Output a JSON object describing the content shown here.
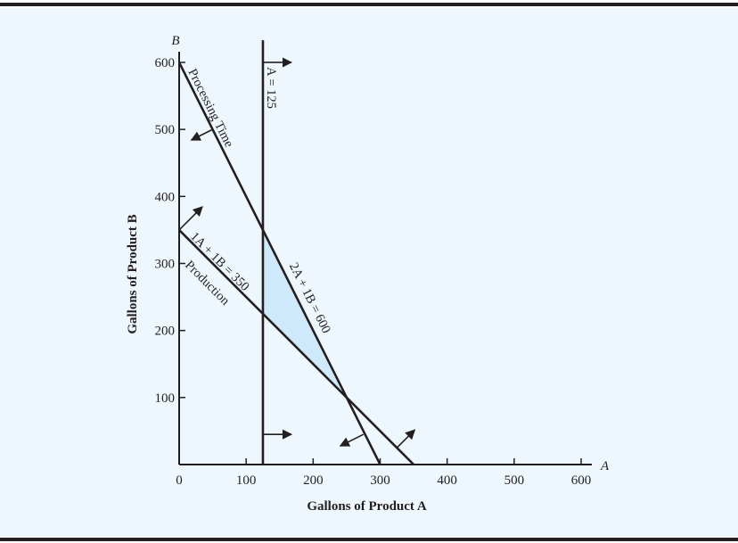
{
  "chart_data": {
    "type": "line",
    "xlabel": "Gallons of Product A",
    "ylabel": "Gallons of Product B",
    "x_axis_var": "A",
    "y_axis_var": "B",
    "xlim": [
      0,
      600
    ],
    "ylim": [
      0,
      600
    ],
    "xticks": [
      0,
      100,
      200,
      300,
      400,
      500,
      600
    ],
    "yticks": [
      100,
      200,
      300,
      400,
      500,
      600
    ],
    "grid": false,
    "colors": {
      "feasible_region": "#cde9fa",
      "lines": "#231f20",
      "background": "#eef7fd",
      "frame_bars": "#231f20"
    },
    "constraints": [
      {
        "name": "A = 125",
        "label": "A = 125",
        "points": [
          [
            125,
            0
          ],
          [
            125,
            633
          ]
        ],
        "arrow_direction": "right"
      },
      {
        "name": "Processing Time",
        "label": "Processing Time",
        "equation": "2A + 1B = 600",
        "points": [
          [
            0,
            600
          ],
          [
            300,
            0
          ]
        ],
        "arrow_direction": "down-left"
      },
      {
        "name": "Production",
        "label": "Production",
        "equation": "1A + 1B = 350",
        "points": [
          [
            0,
            350
          ],
          [
            350,
            0
          ]
        ],
        "arrow_direction": "up-right"
      }
    ],
    "feasible_region": [
      [
        125,
        225
      ],
      [
        125,
        350
      ],
      [
        250,
        100
      ]
    ]
  }
}
